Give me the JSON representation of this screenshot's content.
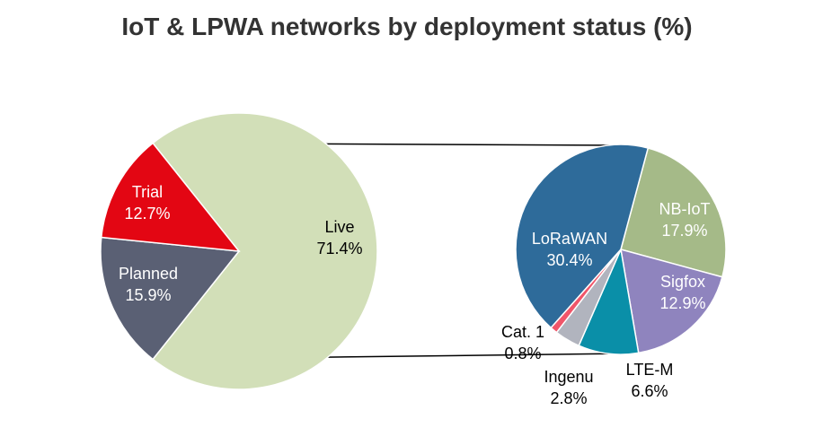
{
  "chart_data": [
    {
      "type": "pie",
      "title": "IoT & LPWA networks by deployment status (%)",
      "slices": [
        {
          "label": "Live",
          "value_label": "71.4%",
          "value": 71.4,
          "color": "#d2dfb8",
          "text_color": "#000000"
        },
        {
          "label": "Planned",
          "value_label": "15.9%",
          "value": 15.9,
          "color": "#5a6074",
          "text_color": "#ffffff"
        },
        {
          "label": "Trial",
          "value_label": "12.7%",
          "value": 12.7,
          "color": "#e30613",
          "text_color": "#ffffff"
        }
      ]
    },
    {
      "type": "pie",
      "title": "",
      "slices": [
        {
          "label": "NB-IoT",
          "value_label": "17.9%",
          "value": 17.9,
          "color": "#a5ba88",
          "text_color": "#ffffff"
        },
        {
          "label": "Sigfox",
          "value_label": "12.9%",
          "value": 12.9,
          "color": "#8f84be",
          "text_color": "#ffffff"
        },
        {
          "label": "LTE-M",
          "value_label": "6.6%",
          "value": 6.6,
          "color": "#0a8fa8",
          "text_color": "#000000"
        },
        {
          "label": "Ingenu",
          "value_label": "2.8%",
          "value": 2.8,
          "color": "#b1b4be",
          "text_color": "#000000"
        },
        {
          "label": "Cat. 1",
          "value_label": "0.8%",
          "value": 0.8,
          "color": "#f0566a",
          "text_color": "#000000"
        },
        {
          "label": "LoRaWAN",
          "value_label": "30.4%",
          "value": 30.4,
          "color": "#2e6b9a",
          "text_color": "#ffffff"
        }
      ]
    }
  ]
}
